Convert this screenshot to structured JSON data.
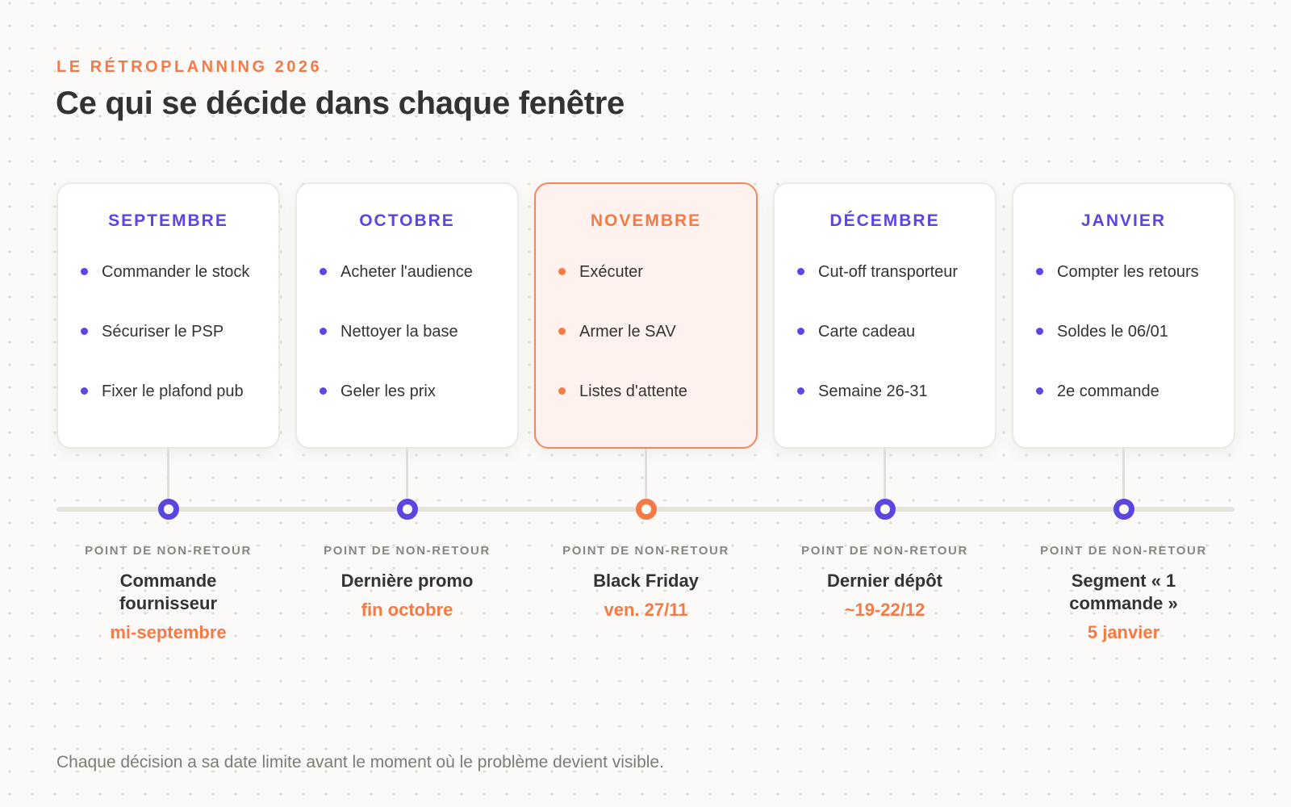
{
  "header": {
    "eyebrow": "LE RÉTROPLANNING 2026",
    "title": "Ce qui se décide dans chaque fenêtre"
  },
  "colors": {
    "accent_purple": "#5b46e0",
    "accent_orange": "#f57a45",
    "highlight_card_bg": "#fff1ed",
    "text_dark": "#333333",
    "text_muted": "#8a8580"
  },
  "columns": [
    {
      "month": "SEPTEMBRE",
      "highlighted": false,
      "items": [
        "Commander le stock",
        "Sécuriser le PSP",
        "Fixer le plafond pub"
      ],
      "caption": "POINT DE NON-RETOUR",
      "event": "Commande fournisseur",
      "date": "mi-septembre"
    },
    {
      "month": "OCTOBRE",
      "highlighted": false,
      "items": [
        "Acheter l'audience",
        "Nettoyer la base",
        "Geler les prix"
      ],
      "caption": "POINT DE NON-RETOUR",
      "event": "Dernière promo",
      "date": "fin octobre"
    },
    {
      "month": "NOVEMBRE",
      "highlighted": true,
      "items": [
        "Exécuter",
        "Armer le SAV",
        "Listes d'attente"
      ],
      "caption": "POINT DE NON-RETOUR",
      "event": "Black Friday",
      "date": "ven. 27/11"
    },
    {
      "month": "DÉCEMBRE",
      "highlighted": false,
      "items": [
        "Cut-off transporteur",
        "Carte cadeau",
        "Semaine 26-31"
      ],
      "caption": "POINT DE NON-RETOUR",
      "event": "Dernier dépôt",
      "date": "~19-22/12"
    },
    {
      "month": "JANVIER",
      "highlighted": false,
      "items": [
        "Compter les retours",
        "Soldes le 06/01",
        "2e commande"
      ],
      "caption": "POINT DE NON-RETOUR",
      "event": "Segment « 1 commande »",
      "date": "5 janvier"
    }
  ],
  "footer": {
    "note": "Chaque décision a sa date limite avant le moment où le problème devient visible."
  }
}
